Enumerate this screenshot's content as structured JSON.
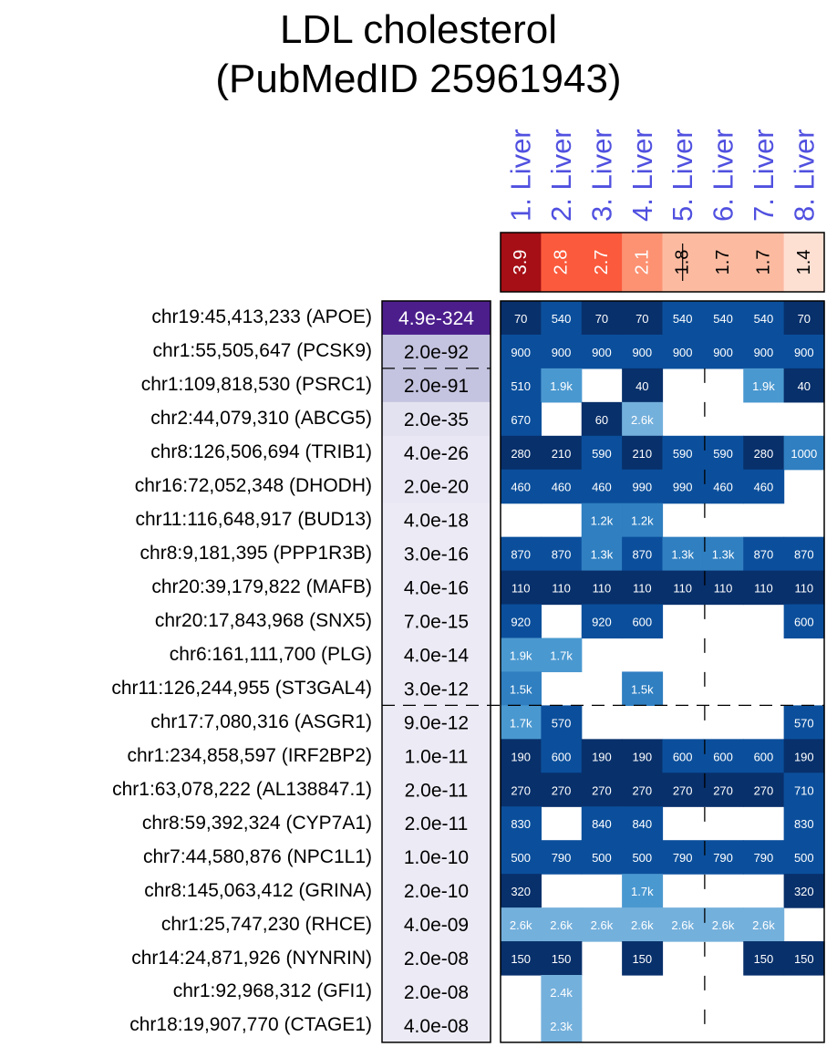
{
  "title": {
    "line1": "LDL cholesterol",
    "line2": "(PubMedID 25961943)"
  },
  "chart_data": {
    "type": "heatmap",
    "title": "LDL cholesterol (PubMedID 25961943)",
    "tissues": [
      "1. Liver",
      "2. Liver",
      "3. Liver",
      "4. Liver",
      "5. Liver",
      "6. Liver",
      "7. Liver",
      "8. Liver"
    ],
    "tissue_scores": [
      "3.9",
      "2.8",
      "2.7",
      "2.1",
      "1.8",
      "1.7",
      "1.7",
      "1.4"
    ],
    "tissue_score_values": [
      3.9,
      2.8,
      2.7,
      2.1,
      1.8,
      1.7,
      1.7,
      1.4
    ],
    "rows": [
      {
        "locus": "chr19:45,413,233 (APOE)",
        "pvalue": "4.9e-324",
        "cells": [
          "70",
          "540",
          "70",
          "70",
          "540",
          "540",
          "540",
          "70"
        ]
      },
      {
        "locus": "chr1:55,505,647 (PCSK9)",
        "pvalue": "2.0e-92",
        "cells": [
          "900",
          "900",
          "900",
          "900",
          "900",
          "900",
          "900",
          "900"
        ]
      },
      {
        "locus": "chr1:109,818,530 (PSRC1)",
        "pvalue": "2.0e-91",
        "cells": [
          "510",
          "1.9k",
          "",
          "40",
          "",
          "",
          "1.9k",
          "40"
        ]
      },
      {
        "locus": "chr2:44,079,310 (ABCG5)",
        "pvalue": "2.0e-35",
        "cells": [
          "670",
          "",
          "60",
          "2.6k",
          "",
          "",
          "",
          ""
        ]
      },
      {
        "locus": "chr8:126,506,694 (TRIB1)",
        "pvalue": "4.0e-26",
        "cells": [
          "280",
          "210",
          "590",
          "210",
          "590",
          "590",
          "280",
          "1000"
        ]
      },
      {
        "locus": "chr16:72,052,348 (DHODH)",
        "pvalue": "2.0e-20",
        "cells": [
          "460",
          "460",
          "460",
          "990",
          "990",
          "460",
          "460",
          ""
        ]
      },
      {
        "locus": "chr11:116,648,917 (BUD13)",
        "pvalue": "4.0e-18",
        "cells": [
          "",
          "",
          "1.2k",
          "1.2k",
          "",
          "",
          "",
          ""
        ]
      },
      {
        "locus": "chr8:9,181,395 (PPP1R3B)",
        "pvalue": "3.0e-16",
        "cells": [
          "870",
          "870",
          "1.3k",
          "870",
          "1.3k",
          "1.3k",
          "870",
          "870"
        ]
      },
      {
        "locus": "chr20:39,179,822 (MAFB)",
        "pvalue": "4.0e-16",
        "cells": [
          "110",
          "110",
          "110",
          "110",
          "110",
          "110",
          "110",
          "110"
        ]
      },
      {
        "locus": "chr20:17,843,968 (SNX5)",
        "pvalue": "7.0e-15",
        "cells": [
          "920",
          "",
          "920",
          "600",
          "",
          "",
          "",
          "600"
        ]
      },
      {
        "locus": "chr6:161,111,700 (PLG)",
        "pvalue": "4.0e-14",
        "cells": [
          "1.9k",
          "1.7k",
          "",
          "",
          "",
          "",
          "",
          ""
        ]
      },
      {
        "locus": "chr11:126,244,955 (ST3GAL4)",
        "pvalue": "3.0e-12",
        "cells": [
          "1.5k",
          "",
          "",
          "1.5k",
          "",
          "",
          "",
          ""
        ]
      },
      {
        "locus": "chr17:7,080,316 (ASGR1)",
        "pvalue": "9.0e-12",
        "cells": [
          "1.7k",
          "570",
          "",
          "",
          "",
          "",
          "",
          "570"
        ]
      },
      {
        "locus": "chr1:234,858,597 (IRF2BP2)",
        "pvalue": "1.0e-11",
        "cells": [
          "190",
          "600",
          "190",
          "190",
          "600",
          "600",
          "600",
          "190"
        ]
      },
      {
        "locus": "chr1:63,078,222 (AL138847.1)",
        "pvalue": "2.0e-11",
        "cells": [
          "270",
          "270",
          "270",
          "270",
          "270",
          "270",
          "270",
          "710"
        ]
      },
      {
        "locus": "chr8:59,392,324 (CYP7A1)",
        "pvalue": "2.0e-11",
        "cells": [
          "830",
          "",
          "840",
          "840",
          "",
          "",
          "",
          "830"
        ]
      },
      {
        "locus": "chr7:44,580,876 (NPC1L1)",
        "pvalue": "1.0e-10",
        "cells": [
          "500",
          "790",
          "500",
          "500",
          "790",
          "790",
          "790",
          "500"
        ]
      },
      {
        "locus": "chr8:145,063,412 (GRINA)",
        "pvalue": "2.0e-10",
        "cells": [
          "320",
          "",
          "",
          "1.7k",
          "",
          "",
          "",
          "320"
        ]
      },
      {
        "locus": "chr1:25,747,230 (RHCE)",
        "pvalue": "4.0e-09",
        "cells": [
          "2.6k",
          "2.6k",
          "2.6k",
          "2.6k",
          "2.6k",
          "2.6k",
          "2.6k",
          ""
        ]
      },
      {
        "locus": "chr14:24,871,926 (NYNRIN)",
        "pvalue": "2.0e-08",
        "cells": [
          "150",
          "150",
          "",
          "150",
          "",
          "",
          "150",
          "150"
        ]
      },
      {
        "locus": "chr1:92,968,312 (GFI1)",
        "pvalue": "2.0e-08",
        "cells": [
          "",
          "2.4k",
          "",
          "",
          "",
          "",
          "",
          ""
        ]
      },
      {
        "locus": "chr18:19,907,770 (CTAGE1)",
        "pvalue": "4.0e-08",
        "cells": [
          "",
          "2.3k",
          "",
          "",
          "",
          "",
          "",
          ""
        ]
      }
    ],
    "colors": {
      "header_text": "#5050e0",
      "pvalue_top": "#4b1e8c",
      "pvalue_high": "#c4c4e0",
      "pvalue_low": "#ecebf5",
      "cell_dark": "#08306b",
      "cell_mid": "#0b4f9c",
      "cell_light": "#2f7fc1",
      "cell_lighter": "#4a98d0",
      "cell_lightest": "#74b0dc"
    }
  }
}
